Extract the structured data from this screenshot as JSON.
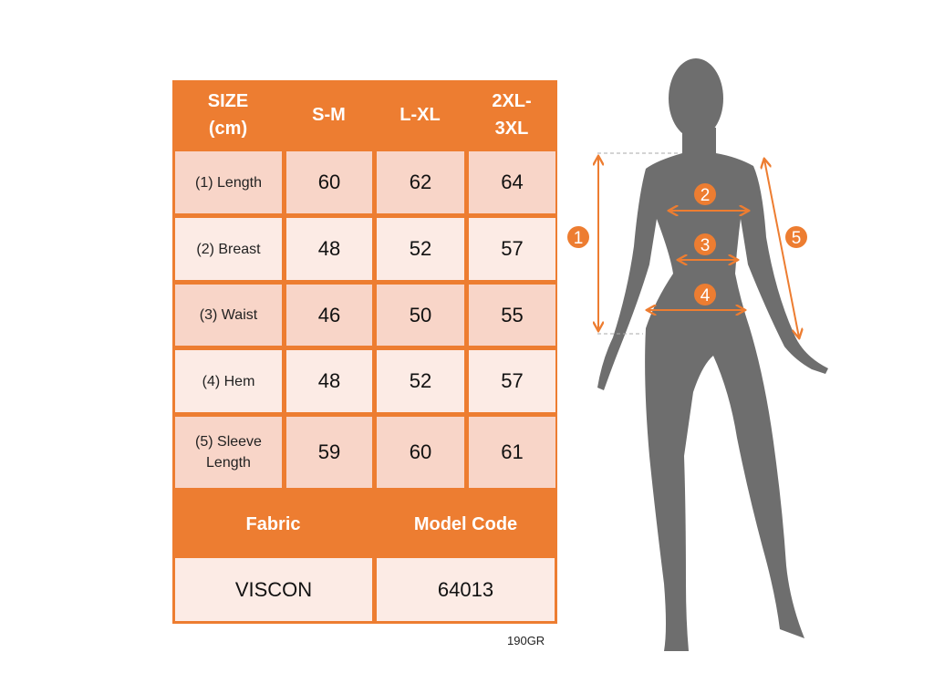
{
  "table": {
    "header": [
      "SIZE (cm)",
      "S-M",
      "L-XL",
      "2XL-3XL"
    ],
    "header_lines": [
      [
        "SIZE",
        "(cm)"
      ],
      [
        "S-M"
      ],
      [
        "L-XL"
      ],
      [
        "2XL-",
        "3XL"
      ]
    ],
    "rows": [
      {
        "label": "(1) Length",
        "values": [
          "60",
          "62",
          "64"
        ]
      },
      {
        "label": "(2) Breast",
        "values": [
          "48",
          "52",
          "57"
        ]
      },
      {
        "label": "(3) Waist",
        "values": [
          "46",
          "50",
          "55"
        ]
      },
      {
        "label": "(4) Hem",
        "values": [
          "48",
          "52",
          "57"
        ]
      },
      {
        "label_lines": [
          "(5) Sleeve",
          "Length"
        ],
        "values": [
          "59",
          "60",
          "61"
        ]
      }
    ],
    "footer_header": [
      "Fabric",
      "Model Code"
    ],
    "footer_values": [
      "VISCON",
      "64013"
    ]
  },
  "note": "190GR",
  "figure": {
    "markers": [
      "1",
      "2",
      "3",
      "4",
      "5"
    ]
  },
  "colors": {
    "accent": "#ED7D31",
    "row_dark": "#F8D5C8",
    "row_light": "#FCEBE5",
    "silhouette": "#6E6E6E"
  }
}
